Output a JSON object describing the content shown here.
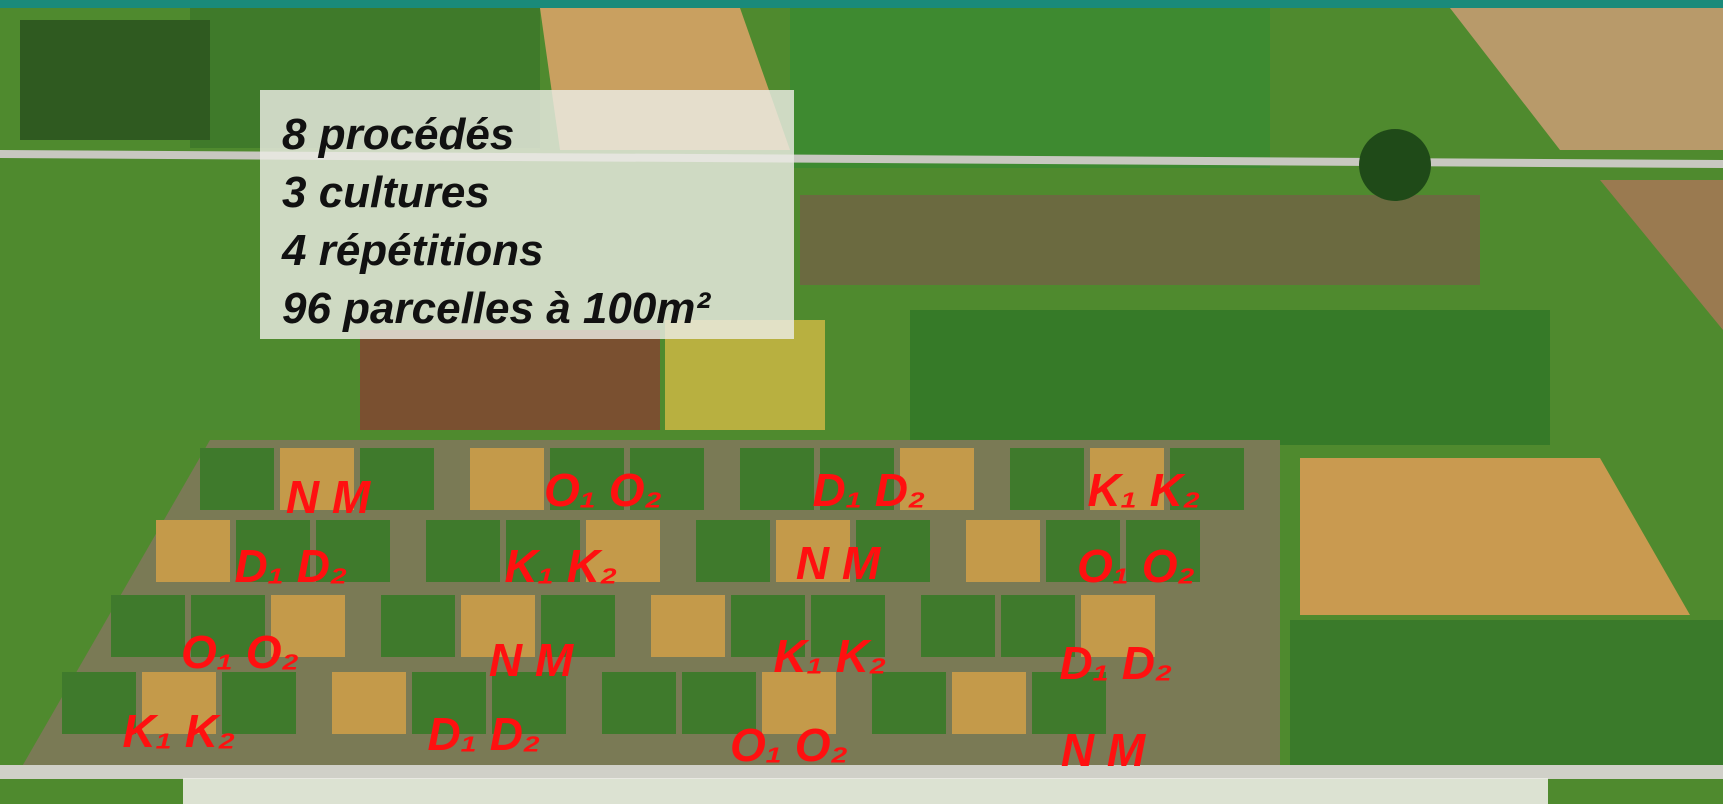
{
  "info_box": {
    "lines": [
      "8 procédés",
      "3 cultures",
      "4 répétitions",
      "96 parcelles à 100m²"
    ]
  },
  "plot_labels": {
    "rows": [
      [
        "N M",
        "O₁ O₂",
        "D₁ D₂",
        "K₁ K₂"
      ],
      [
        "D₁ D₂",
        "K₁ K₂",
        "N M",
        "O₁ O₂"
      ],
      [
        "O₁ O₂",
        "N M",
        "K₁ K₂",
        "D₁ D₂"
      ],
      [
        "K₁ K₂",
        "D₁ D₂",
        "O₁ O₂",
        "N M"
      ]
    ]
  }
}
